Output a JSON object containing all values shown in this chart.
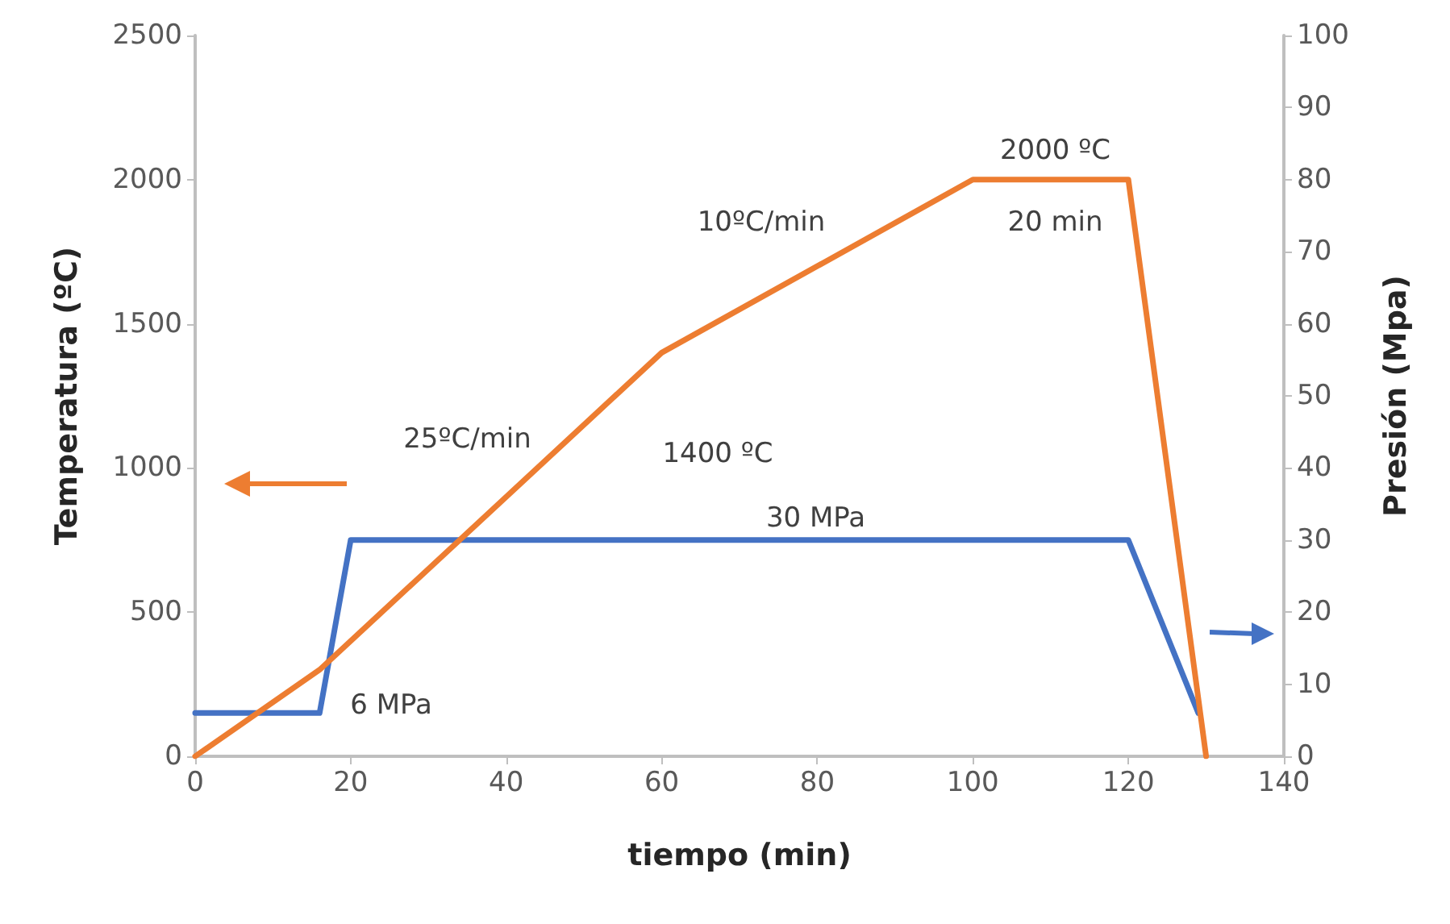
{
  "chart_data": {
    "type": "line",
    "xlabel": "tiempo (min)",
    "ylabel": "Temperatura (ºC)",
    "y2label": "Presión (Mpa)",
    "xlim": [
      0,
      140
    ],
    "xticks": [
      0,
      20,
      40,
      60,
      80,
      100,
      120,
      140
    ],
    "ylim": [
      0,
      2500
    ],
    "yticks": [
      0,
      500,
      1000,
      1500,
      2000,
      2500
    ],
    "y2lim": [
      0,
      100
    ],
    "y2ticks": [
      0,
      10,
      20,
      30,
      40,
      50,
      60,
      70,
      80,
      90,
      100
    ],
    "series": [
      {
        "color": "#ed7d31",
        "x": [
          0,
          16,
          60,
          100,
          120,
          130
        ],
        "values": [
          0,
          300,
          1400,
          2000,
          2000,
          0
        ]
      },
      {
        "color": "#4472c4",
        "axis": "y2",
        "x": [
          0,
          16,
          20,
          120,
          129
        ],
        "values": [
          6,
          6,
          30,
          30,
          6
        ]
      }
    ],
    "annotations": [
      "25ºC/min",
      "1400 ºC",
      "10ºC/min",
      "2000 ºC",
      "20 min",
      "30 MPa",
      "6 MPa"
    ],
    "grid": false,
    "marker": "none",
    "line_style": "solid"
  }
}
